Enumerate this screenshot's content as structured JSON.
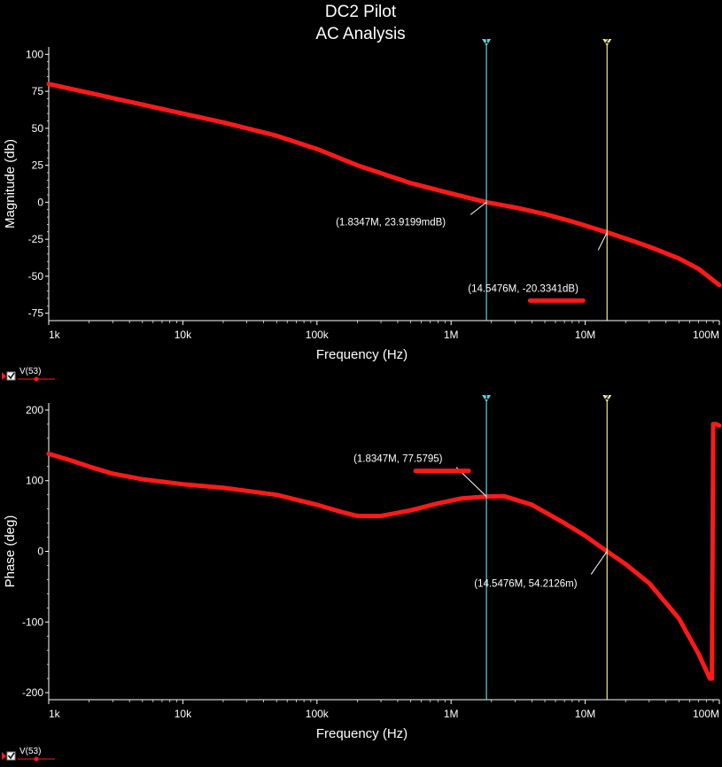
{
  "title": "DC2 Pilot",
  "subtitle": "AC Analysis",
  "colors": {
    "background": "#000000",
    "trace": "#ff1a1a",
    "axis": "#ffffff",
    "cursor1": "#5fd3dc",
    "cursor2": "#f2f08a"
  },
  "chart_data": [
    {
      "type": "line",
      "name": "magnitude",
      "xlabel": "Frequency (Hz)",
      "ylabel": "Magnitude (db)",
      "xscale": "log",
      "xlim": [
        1000,
        100000000
      ],
      "ylim": [
        -80,
        105
      ],
      "x_ticks": [
        1000,
        10000,
        100000,
        1000000,
        10000000,
        100000000
      ],
      "x_tick_labels": [
        "1k",
        "10k",
        "100k",
        "1M",
        "10M",
        "100M"
      ],
      "y_ticks": [
        100,
        75,
        50,
        25,
        0,
        -25,
        -50,
        -75
      ],
      "y_tick_labels": [
        "100",
        "75",
        "50",
        "25",
        "0",
        "-25",
        "-50",
        "-75"
      ],
      "legend": {
        "label": "V(53)",
        "placement": "bottom-left"
      },
      "series": [
        {
          "x": [
            1000,
            2000,
            5000,
            10000,
            20000,
            50000,
            100000,
            200000,
            500000,
            1000000,
            1834700,
            3000000,
            5000000,
            8000000,
            14547600,
            20000000,
            30000000,
            50000000,
            70000000,
            100000000
          ],
          "y": [
            80,
            74,
            66,
            60,
            54,
            45,
            36,
            25,
            13,
            6,
            0.0239,
            -3.5,
            -8,
            -13,
            -20.33,
            -24.5,
            -30,
            -38,
            -45,
            -56
          ]
        }
      ],
      "cursors": [
        {
          "id": "1",
          "x": 1834700,
          "y": 0.0239,
          "label": "(1.8347M, 23.9199mdB)"
        },
        {
          "id": "2",
          "x": 14547600,
          "y": -20.3341,
          "label": "(14.5476M, -20.3341dB)"
        }
      ]
    },
    {
      "type": "line",
      "name": "phase",
      "xlabel": "Frequency (Hz)",
      "ylabel": "Phase (deg)",
      "xscale": "log",
      "xlim": [
        1000,
        100000000
      ],
      "ylim": [
        -210,
        210
      ],
      "x_ticks": [
        1000,
        10000,
        100000,
        1000000,
        10000000,
        100000000
      ],
      "x_tick_labels": [
        "1k",
        "10k",
        "100k",
        "1M",
        "10M",
        "100M"
      ],
      "y_ticks": [
        200,
        100,
        0,
        -100,
        -200
      ],
      "y_tick_labels": [
        "200",
        "100",
        "0",
        "-100",
        "-200"
      ],
      "legend": {
        "label": "V(53)",
        "placement": "bottom-left"
      },
      "series": [
        {
          "x": [
            1000,
            1500,
            2000,
            3000,
            5000,
            10000,
            20000,
            50000,
            100000,
            150000,
            200000,
            300000,
            500000,
            800000,
            1200000,
            1834700,
            2500000,
            4000000,
            7000000,
            10000000,
            14547600,
            20000000,
            30000000,
            50000000,
            70000000,
            85000000,
            88000000,
            90000000,
            95000000,
            100000000
          ],
          "y": [
            138,
            128,
            120,
            110,
            102,
            95,
            90,
            80,
            66,
            56,
            50,
            50,
            58,
            68,
            75,
            77.58,
            78,
            66,
            40,
            22,
            0.054,
            -18,
            -45,
            -95,
            -145,
            -180,
            -180,
            180,
            180,
            178
          ]
        }
      ],
      "cursors": [
        {
          "id": "1",
          "x": 1834700,
          "y": 77.5795,
          "label": "(1.8347M, 77.5795)"
        },
        {
          "id": "2",
          "x": 14547600,
          "y": 0.0542,
          "label": "(14.5476M, 54.2126m)"
        }
      ]
    }
  ]
}
